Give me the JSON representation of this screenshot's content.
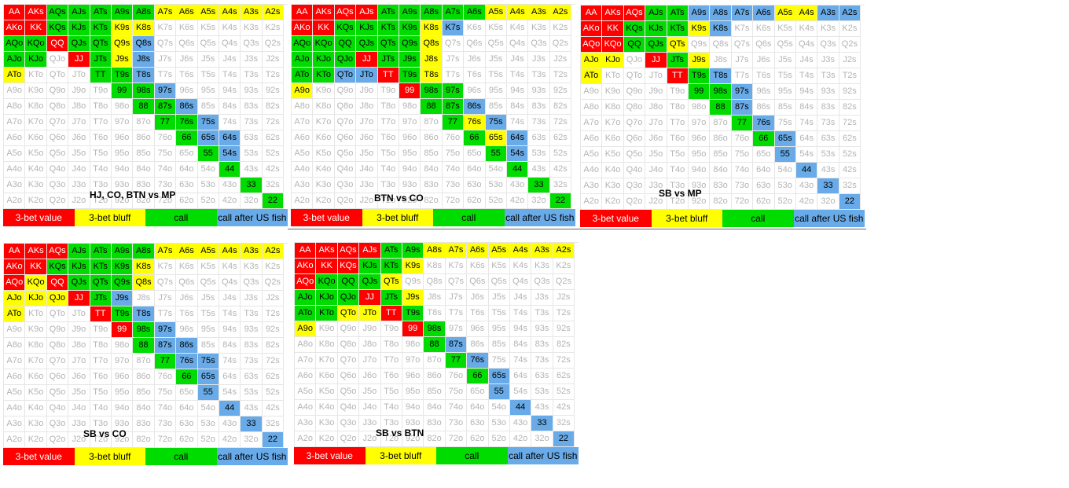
{
  "colors": {
    "R": "#ff0000",
    "Y": "#ffff00",
    "G": "#00dc00",
    "B": "#68abe8"
  },
  "ranks": [
    "A",
    "K",
    "Q",
    "J",
    "T",
    "9",
    "8",
    "7",
    "6",
    "5",
    "4",
    "3",
    "2"
  ],
  "legend": {
    "value": "3-bet value",
    "bluff": "3-bet bluff",
    "call": "call",
    "fish": "call after US fish"
  },
  "charts": [
    {
      "title": "HJ, CO, BTN vs MP",
      "rows": [
        "RRGGGGGYYYYYY",
        "RRGGGYY......",
        "GGRGGYB......",
        "GG.RGYB......",
        "Y...GGB......",
        ".....GGB.....",
        "......GGB....",
        ".......GGB...",
        "........GBB..",
        ".........GB..",
        "..........G..",
        "...........G.",
        "............G"
      ]
    },
    {
      "title": "BTN vs CO",
      "rows": [
        "RRRRGGGGGYYYY",
        "RRGGGGYB.....",
        "GGGGGGY......",
        "GGGRGGY......",
        "GGBBRGY......",
        "Y....RGG.....",
        "......GGB....",
        ".......GYB...",
        "........GYB..",
        ".........GB..",
        "..........G..",
        "...........G.",
        "............G"
      ]
    },
    {
      "title": "SB vs MP",
      "rows": [
        "RRRGGBBBBYYBB",
        "RRGGGYB......",
        "RRGGY........",
        "YY.RGY.......",
        "Y...RGB......",
        ".....GGB.....",
        "......GB.....",
        ".......GB....",
        "........GB...",
        ".........B...",
        "..........B..",
        "...........B.",
        "............B"
      ]
    },
    {
      "title": "SB vs CO",
      "rows": [
        "RRRGGGGYYYYYY",
        "RRGGGGY......",
        "RYRGGGY......",
        "YYYRGB.......",
        "Y...RGB......",
        ".....RGB.....",
        "......GBB....",
        ".......GBB...",
        "........GB...",
        ".........B...",
        "..........B..",
        "...........B.",
        "............B"
      ]
    },
    {
      "title": "SB vs BTN",
      "rows": [
        "RRRRGGYYYYYYY",
        "RRRGGY.......",
        "RGGGY........",
        "GGGRGY.......",
        "GGYYRG.......",
        "Y....RG......",
        "......GB.....",
        ".......GB....",
        "........GB...",
        ".........B...",
        "..........B..",
        "...........B.",
        "............B"
      ]
    }
  ]
}
